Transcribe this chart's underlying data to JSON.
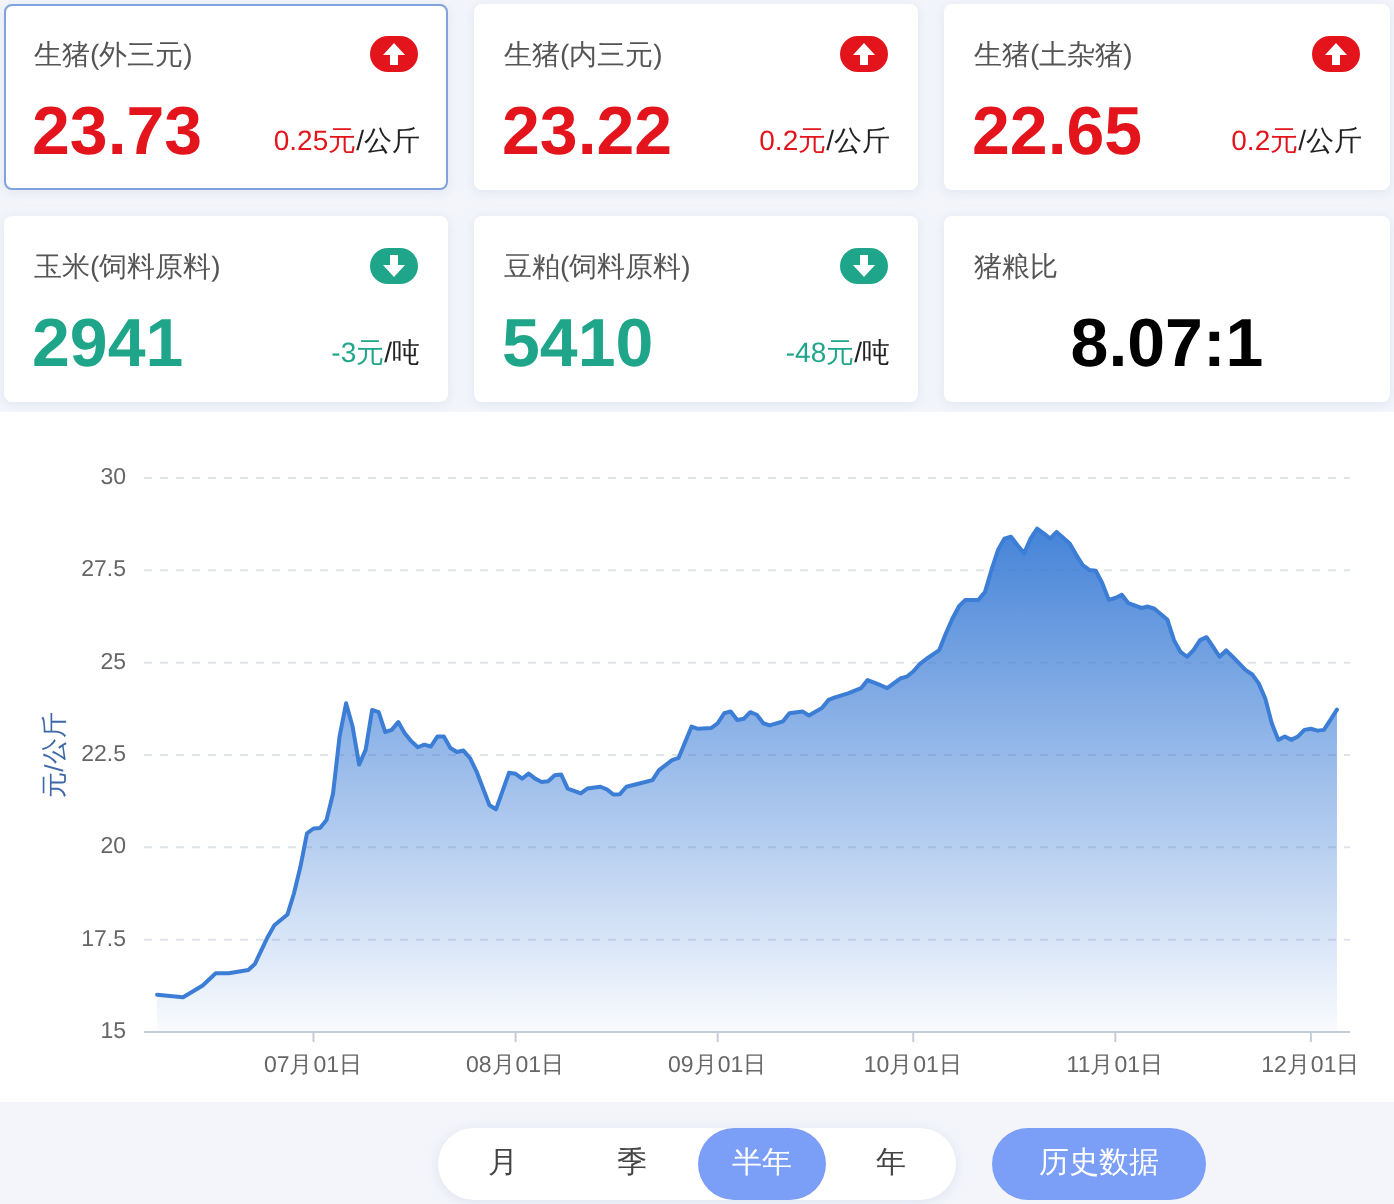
{
  "chart_data": [
    {
      "type": "other",
      "title": "生猪(外三元)",
      "annotations": [
        "23.73",
        "/公斤"
      ],
      "values": [
        0.25
      ],
      "value_labels": [
        "0.25元"
      ]
    },
    {
      "type": "other",
      "title": "生猪(内三元)",
      "annotations": [
        "23.22",
        "/公斤"
      ],
      "values": [
        0.2
      ],
      "value_labels": [
        "0.2元"
      ]
    },
    {
      "type": "other",
      "title": "生猪(土杂猪)",
      "annotations": [
        "22.65",
        "/公斤"
      ],
      "values": [
        0.2
      ],
      "value_labels": [
        "0.2元"
      ]
    },
    {
      "type": "other",
      "title": "玉米(饲料原料)",
      "annotations": [
        "2941",
        "/吨"
      ],
      "values": [
        -3
      ],
      "value_labels": [
        "-3元"
      ]
    },
    {
      "type": "other",
      "title": "豆粕(饲料原料)",
      "annotations": [
        "5410",
        "/吨"
      ],
      "values": [
        -48
      ],
      "value_labels": [
        "-48元"
      ]
    },
    {
      "type": "other",
      "title": "猪粮比",
      "annotations": [
        "8.07:1"
      ]
    },
    {
      "type": "area",
      "ylabel": "元/公斤",
      "color": "#3c7dd6",
      "grid": "y",
      "xlim": [
        "--06-05",
        "--12-07"
      ],
      "xticks": [
        {
          "value": "--07-01",
          "label": "07月01日"
        },
        {
          "value": "--08-01",
          "label": "08月01日"
        },
        {
          "value": "--09-01",
          "label": "09月01日"
        },
        {
          "value": "--10-01",
          "label": "10月01日"
        },
        {
          "value": "--11-01",
          "label": "11月01日"
        },
        {
          "value": "--12-01",
          "label": "12月01日"
        }
      ],
      "ylim": [
        15,
        30
      ],
      "yticks": [
        15,
        17.5,
        20,
        22.5,
        25,
        27.5,
        30
      ],
      "x": [
        "--06-07",
        "--06-11",
        "--06-14",
        "--06-16",
        "--06-18",
        "--06-21",
        "--06-22",
        "--06-24",
        "--06-25",
        "--06-27",
        "--06-28",
        "--06-29",
        "--06-30",
        "--07-01",
        "--07-02",
        "--07-03",
        "--07-04",
        "--07-05",
        "--07-06",
        "--07-07",
        "--07-08",
        "--07-09",
        "--07-10",
        "--07-11",
        "--07-12",
        "--07-13",
        "--07-14",
        "--07-15",
        "--07-16",
        "--07-17",
        "--07-18",
        "--07-19",
        "--07-20",
        "--07-21",
        "--07-22",
        "--07-23",
        "--07-24",
        "--07-25",
        "--07-26",
        "--07-28",
        "--07-29",
        "--07-31",
        "--08-01",
        "--08-02",
        "--08-03",
        "--08-04",
        "--08-05",
        "--08-06",
        "--08-07",
        "--08-08",
        "--08-09",
        "--08-11",
        "--08-12",
        "--08-14",
        "--08-15",
        "--08-16",
        "--08-17",
        "--08-18",
        "--08-20",
        "--08-22",
        "--08-23",
        "--08-25",
        "--08-26",
        "--08-28",
        "--08-29",
        "--08-31",
        "--09-01",
        "--09-02",
        "--09-03",
        "--09-04",
        "--09-05",
        "--09-06",
        "--09-07",
        "--09-08",
        "--09-09",
        "--09-11",
        "--09-12",
        "--09-14",
        "--09-15",
        "--09-17",
        "--09-18",
        "--09-19",
        "--09-21",
        "--09-23",
        "--09-24",
        "--09-26",
        "--09-27",
        "--09-28",
        "--09-29",
        "--09-30",
        "--10-01",
        "--10-02",
        "--10-03",
        "--10-05",
        "--10-06",
        "--10-07",
        "--10-08",
        "--10-09",
        "--10-11",
        "--10-12",
        "--10-13",
        "--10-14",
        "--10-15",
        "--10-16",
        "--10-17",
        "--10-18",
        "--10-19",
        "--10-20",
        "--10-21",
        "--10-22",
        "--10-23",
        "--10-25",
        "--10-26",
        "--10-27",
        "--10-28",
        "--10-29",
        "--10-30",
        "--10-31",
        "--11-01",
        "--11-02",
        "--11-03",
        "--11-05",
        "--11-06",
        "--11-07",
        "--11-09",
        "--11-10",
        "--11-11",
        "--11-12",
        "--11-13",
        "--11-14",
        "--11-15",
        "--11-16",
        "--11-17",
        "--11-18",
        "--11-19",
        "--11-20",
        "--11-21",
        "--11-22",
        "--11-23",
        "--11-24",
        "--11-25",
        "--11-26",
        "--11-27",
        "--11-28",
        "--11-29",
        "--11-30",
        "--12-01",
        "--12-02",
        "--12-03",
        "--12-04",
        "--12-05"
      ],
      "values": [
        16.01,
        15.94,
        16.26,
        16.59,
        16.59,
        16.68,
        16.84,
        17.58,
        17.89,
        18.18,
        18.75,
        19.48,
        20.38,
        20.51,
        20.52,
        20.74,
        21.46,
        23.0,
        23.9,
        23.27,
        22.24,
        22.64,
        23.72,
        23.66,
        23.12,
        23.18,
        23.39,
        23.09,
        22.87,
        22.71,
        22.78,
        22.73,
        23.0,
        23.0,
        22.69,
        22.58,
        22.62,
        22.42,
        22.06,
        21.14,
        21.03,
        22.02,
        21.99,
        21.86,
        22.0,
        21.86,
        21.77,
        21.79,
        21.95,
        21.97,
        21.59,
        21.46,
        21.59,
        21.64,
        21.57,
        21.43,
        21.44,
        21.64,
        21.73,
        21.82,
        22.09,
        22.36,
        22.42,
        23.27,
        23.21,
        23.23,
        23.36,
        23.63,
        23.68,
        23.45,
        23.48,
        23.66,
        23.59,
        23.36,
        23.3,
        23.41,
        23.63,
        23.68,
        23.57,
        23.77,
        23.99,
        24.06,
        24.17,
        24.31,
        24.53,
        24.39,
        24.31,
        24.44,
        24.57,
        24.62,
        24.76,
        24.96,
        25.1,
        25.34,
        25.79,
        26.19,
        26.52,
        26.7,
        26.7,
        26.91,
        27.51,
        28.05,
        28.36,
        28.41,
        28.18,
        27.96,
        28.36,
        28.63,
        28.5,
        28.36,
        28.54,
        28.23,
        27.92,
        27.64,
        27.51,
        27.49,
        27.15,
        26.7,
        26.75,
        26.84,
        26.61,
        26.48,
        26.52,
        26.46,
        26.16,
        25.61,
        25.29,
        25.16,
        25.34,
        25.61,
        25.69,
        25.43,
        25.16,
        25.33,
        25.16,
        24.98,
        24.8,
        24.68,
        24.44,
        24.03,
        23.36,
        22.91,
        23.0,
        22.91,
        23.0,
        23.18,
        23.21,
        23.16,
        23.18,
        23.45,
        23.73
      ]
    },
    {
      "type": "other",
      "annotations": [
        "月",
        "季",
        "半年",
        "年",
        "历史数据"
      ]
    }
  ]
}
